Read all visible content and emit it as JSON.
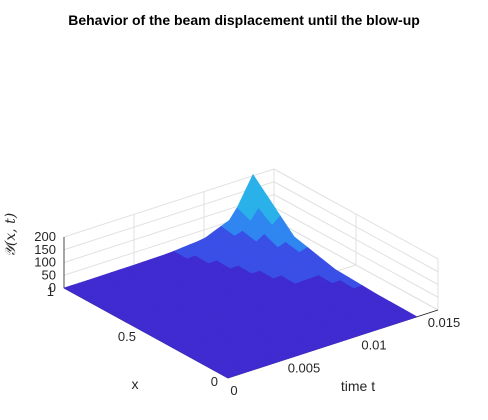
{
  "chart_data": {
    "type": "surface",
    "title": "Behavior of the beam displacement until the blow-up",
    "xlabel": "time t",
    "ylabel": "x",
    "zlabel": "𝒴(x, t)",
    "t_range": [
      0,
      0.015
    ],
    "x_range": [
      0,
      1
    ],
    "z_range": [
      0,
      200
    ],
    "t_ticks": [
      "0",
      "0.005",
      "0.01",
      "0.015"
    ],
    "x_ticks": [
      "0",
      "0.5",
      "1"
    ],
    "z_ticks": [
      "0",
      "50",
      "100",
      "150",
      "200"
    ],
    "peak": {
      "t": 0.0135,
      "x": 1,
      "z": 205
    },
    "surface_rows": [
      {
        "x": 0.0,
        "z": [
          0,
          0,
          0,
          0,
          0,
          0,
          0
        ]
      },
      {
        "x": 0.25,
        "z": [
          0,
          0,
          0,
          0,
          0,
          1,
          2
        ]
      },
      {
        "x": 0.5,
        "z": [
          0,
          0,
          0,
          1,
          2,
          5,
          10
        ]
      },
      {
        "x": 0.75,
        "z": [
          0,
          0,
          1,
          2,
          6,
          20,
          50
        ]
      },
      {
        "x": 1.0,
        "z": [
          0,
          0,
          1,
          3,
          15,
          60,
          205
        ]
      }
    ],
    "surface_t": [
      0,
      0.0025,
      0.005,
      0.0075,
      0.01,
      0.012,
      0.0135
    ],
    "colormap": [
      "#3f2bd0",
      "#3a4fe6",
      "#2f86f0",
      "#2ab1ea",
      "#38c8d2"
    ],
    "grid": true
  }
}
